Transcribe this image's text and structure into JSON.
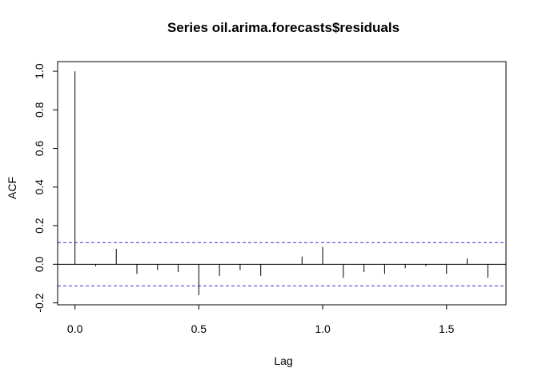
{
  "chart_data": {
    "type": "bar",
    "title": "Series  oil.arima.forecasts$residuals",
    "xlabel": "Lag",
    "ylabel": "ACF",
    "xlim": [
      -0.07,
      1.74
    ],
    "ylim": [
      -0.21,
      1.05
    ],
    "x_ticks": [
      0.0,
      0.5,
      1.0,
      1.5
    ],
    "x_tick_labels": [
      "0.0",
      "0.5",
      "1.0",
      "1.5"
    ],
    "y_ticks": [
      -0.2,
      0.0,
      0.2,
      0.4,
      0.6,
      0.8,
      1.0
    ],
    "y_tick_labels": [
      "-0.2",
      "0.0",
      "0.2",
      "0.4",
      "0.6",
      "0.8",
      "1.0"
    ],
    "confidence_bound": 0.112,
    "bound_color": "#3333cc",
    "line_color": "#000000",
    "x": [
      0.0,
      0.0833,
      0.1667,
      0.25,
      0.3333,
      0.4167,
      0.5,
      0.5833,
      0.6667,
      0.75,
      0.8333,
      0.9167,
      1.0,
      1.0833,
      1.1667,
      1.25,
      1.3333,
      1.4167,
      1.5,
      1.5833,
      1.6667
    ],
    "values": [
      1.0,
      -0.01,
      0.08,
      -0.05,
      -0.03,
      -0.04,
      -0.16,
      -0.06,
      -0.03,
      -0.06,
      0.0,
      0.04,
      0.09,
      -0.07,
      -0.04,
      -0.05,
      -0.02,
      -0.01,
      -0.05,
      0.03,
      -0.07
    ]
  }
}
